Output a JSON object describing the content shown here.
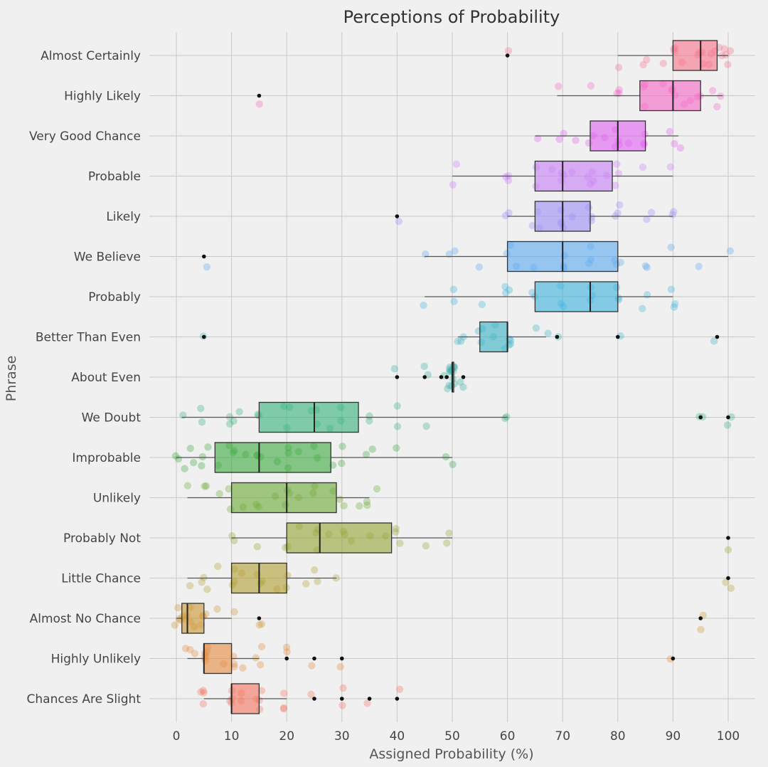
{
  "chart_data": {
    "type": "box",
    "orientation": "horizontal",
    "title": "Perceptions of Probability",
    "xlabel": "Assigned Probability (%)",
    "ylabel": "Phrase",
    "xlim": [
      -5,
      105
    ],
    "xticks": [
      0,
      10,
      20,
      30,
      40,
      50,
      60,
      70,
      80,
      90,
      100
    ],
    "grid": true,
    "series": [
      {
        "name": "Almost Certainly",
        "color": "#f77189",
        "whislo": 80,
        "q1": 90,
        "median": 95,
        "q3": 98,
        "whishi": 100,
        "outliers": [
          60
        ],
        "points": [
          60,
          80,
          85,
          85,
          88,
          90,
          90,
          90,
          92,
          95,
          95,
          95,
          95,
          96,
          97,
          98,
          98,
          99,
          99,
          99,
          100,
          100
        ]
      },
      {
        "name": "Highly Likely",
        "color": "#f565c4",
        "whislo": 69,
        "q1": 84,
        "median": 90,
        "q3": 95,
        "whishi": 99,
        "outliers": [
          15
        ],
        "points": [
          15,
          69,
          75,
          80,
          80,
          80,
          85,
          85,
          85,
          88,
          90,
          90,
          90,
          92,
          93,
          95,
          95,
          97,
          98,
          99
        ]
      },
      {
        "name": "Very Good Chance",
        "color": "#e05ff0",
        "whislo": 65,
        "q1": 75,
        "median": 80,
        "q3": 85,
        "whishi": 91,
        "outliers": [],
        "points": [
          65,
          70,
          70,
          72,
          75,
          75,
          78,
          80,
          80,
          80,
          80,
          82,
          85,
          85,
          85,
          90,
          90,
          91
        ]
      },
      {
        "name": "Probable",
        "color": "#c77df5",
        "whislo": 50,
        "q1": 65,
        "median": 70,
        "q3": 79,
        "whishi": 90,
        "outliers": [],
        "points": [
          50,
          51,
          60,
          60,
          60,
          65,
          65,
          68,
          70,
          70,
          70,
          72,
          75,
          75,
          75,
          75,
          78,
          80,
          80,
          80,
          85,
          90
        ]
      },
      {
        "name": "Likely",
        "color": "#9b8cf5",
        "whislo": 60,
        "q1": 65,
        "median": 70,
        "q3": 75,
        "whishi": 90,
        "outliers": [
          40
        ],
        "points": [
          40,
          60,
          60,
          65,
          65,
          66,
          70,
          70,
          70,
          70,
          72,
          75,
          75,
          75,
          80,
          80,
          80,
          85,
          86,
          90,
          90
        ]
      },
      {
        "name": "We Believe",
        "color": "#5aa8f0",
        "whislo": 45,
        "q1": 60,
        "median": 70,
        "q3": 80,
        "whishi": 100,
        "outliers": [
          5
        ],
        "points": [
          5,
          45,
          50,
          50,
          55,
          60,
          60,
          62,
          65,
          70,
          70,
          70,
          75,
          75,
          75,
          80,
          80,
          80,
          85,
          85,
          90,
          95,
          100
        ]
      },
      {
        "name": "Probably",
        "color": "#3bb2de",
        "whislo": 45,
        "q1": 65,
        "median": 75,
        "q3": 80,
        "whishi": 90,
        "outliers": [],
        "points": [
          45,
          50,
          50,
          55,
          60,
          60,
          60,
          65,
          65,
          70,
          70,
          70,
          75,
          75,
          75,
          80,
          80,
          80,
          85,
          85,
          90,
          90,
          90
        ]
      },
      {
        "name": "Better Than Even",
        "color": "#37b3c4",
        "whislo": 51,
        "q1": 55,
        "median": 60,
        "q3": 60,
        "whishi": 67,
        "outliers": [
          5,
          69,
          80,
          98
        ],
        "points": [
          5,
          51,
          51,
          52,
          55,
          55,
          56,
          57,
          58,
          60,
          60,
          60,
          60,
          60,
          65,
          67,
          69,
          80,
          98
        ]
      },
      {
        "name": "About Even",
        "color": "#36ada4",
        "whislo": 50,
        "q1": 50,
        "median": 50,
        "q3": 50,
        "whishi": 50,
        "outliers": [
          40,
          45,
          48,
          49,
          52
        ],
        "points": [
          40,
          45,
          45,
          48,
          49,
          50,
          50,
          50,
          50,
          50,
          50,
          50,
          50,
          50,
          50,
          50,
          50,
          50,
          52,
          52
        ]
      },
      {
        "name": "We Doubt",
        "color": "#33b07a",
        "whislo": 1,
        "q1": 15,
        "median": 25,
        "q3": 33,
        "whishi": 60,
        "outliers": [
          95,
          100
        ],
        "points": [
          1,
          5,
          5,
          10,
          10,
          10,
          12,
          15,
          15,
          20,
          20,
          20,
          25,
          25,
          25,
          28,
          30,
          30,
          35,
          35,
          40,
          40,
          45,
          60,
          60,
          95,
          95,
          100,
          100
        ]
      },
      {
        "name": "Improbable",
        "color": "#3ba83c",
        "whislo": 0,
        "q1": 7,
        "median": 15,
        "q3": 28,
        "whishi": 50,
        "outliers": [],
        "points": [
          0,
          0,
          1,
          2,
          3,
          5,
          5,
          6,
          8,
          10,
          10,
          10,
          12,
          15,
          15,
          15,
          18,
          20,
          20,
          20,
          22,
          25,
          25,
          28,
          30,
          30,
          35,
          35,
          40,
          49,
          50
        ]
      },
      {
        "name": "Unlikely",
        "color": "#6aa833",
        "whislo": 2,
        "q1": 10,
        "median": 20,
        "q3": 29,
        "whishi": 35,
        "outliers": [],
        "points": [
          2,
          5,
          5,
          8,
          10,
          10,
          12,
          15,
          15,
          18,
          20,
          20,
          20,
          22,
          25,
          25,
          28,
          30,
          30,
          33,
          35,
          35,
          36
        ]
      },
      {
        "name": "Probably Not",
        "color": "#96a433",
        "whislo": 10,
        "q1": 20,
        "median": 26,
        "q3": 39,
        "whishi": 50,
        "outliers": [
          100
        ],
        "points": [
          10,
          10,
          15,
          20,
          20,
          22,
          25,
          25,
          26,
          28,
          30,
          30,
          32,
          35,
          38,
          40,
          40,
          40,
          45,
          49,
          50,
          100
        ]
      },
      {
        "name": "Little Chance",
        "color": "#b39f30",
        "whislo": 2,
        "q1": 10,
        "median": 15,
        "q3": 20,
        "whishi": 29,
        "outliers": [
          100
        ],
        "points": [
          2,
          5,
          5,
          5,
          7,
          10,
          10,
          10,
          12,
          15,
          15,
          15,
          18,
          20,
          20,
          23,
          25,
          25,
          29,
          100,
          100
        ]
      },
      {
        "name": "Almost No Chance",
        "color": "#cc9530",
        "whislo": 0,
        "q1": 1,
        "median": 2,
        "q3": 5,
        "whishi": 10,
        "outliers": [
          15,
          95
        ],
        "points": [
          0,
          0,
          1,
          1,
          1,
          2,
          2,
          2,
          3,
          3,
          4,
          5,
          5,
          5,
          7,
          10,
          15,
          15,
          95,
          95
        ]
      },
      {
        "name": "Highly Unlikely",
        "color": "#e48a3e",
        "whislo": 2,
        "q1": 5,
        "median": 5,
        "q3": 10,
        "whishi": 15,
        "outliers": [
          20,
          25,
          30,
          90
        ],
        "points": [
          2,
          3,
          3,
          5,
          5,
          5,
          5,
          5,
          6,
          8,
          10,
          10,
          10,
          12,
          15,
          15,
          15,
          20,
          20,
          25,
          30,
          90
        ]
      },
      {
        "name": "Chances Are Slight",
        "color": "#f3735d",
        "whislo": 5,
        "q1": 10,
        "median": 10,
        "q3": 15,
        "whishi": 20,
        "outliers": [
          25,
          30,
          35,
          40
        ],
        "points": [
          5,
          5,
          5,
          5,
          10,
          10,
          10,
          10,
          12,
          12,
          15,
          15,
          15,
          15,
          20,
          20,
          20,
          25,
          30,
          30,
          35,
          40
        ]
      }
    ]
  }
}
